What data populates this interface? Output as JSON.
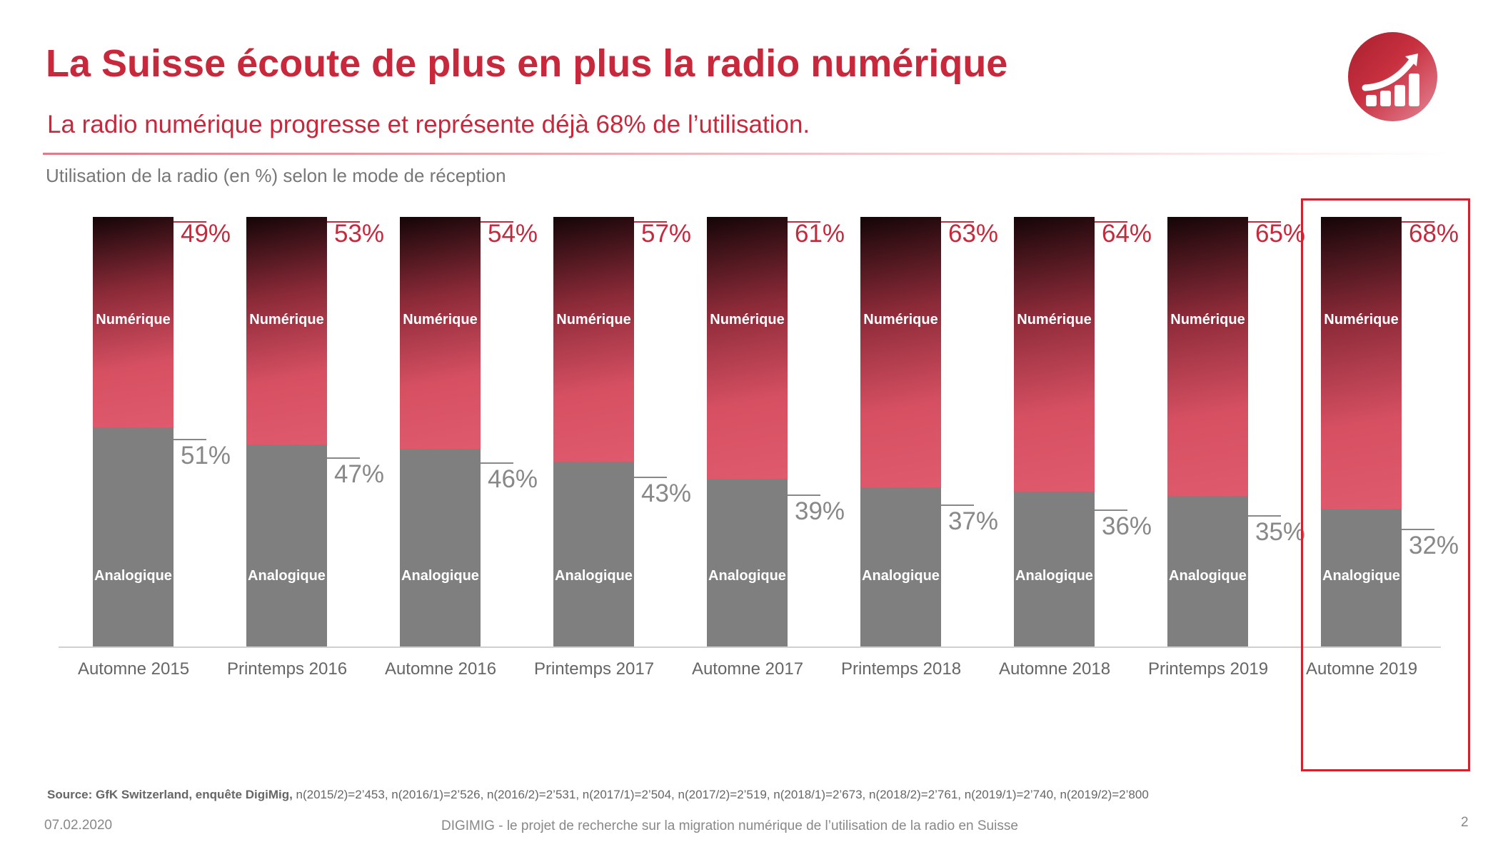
{
  "title": "La Suisse écoute de plus en plus la radio numérique",
  "subtitle": "La radio numérique progresse et représente déjà 68% de l’utilisation.",
  "colors": {
    "accent": "#c8283c",
    "analog": "#7f7f7f",
    "highlight": "#d0232f"
  },
  "logo_icon": "chart-growth-icon",
  "chart_data": {
    "type": "bar",
    "stacked": true,
    "title": "Utilisation de la radio (en %) selon le mode de réception",
    "categories": [
      "Automne 2015",
      "Printemps 2016",
      "Automne 2016",
      "Printemps 2017",
      "Automne 2017",
      "Printemps 2018",
      "Automne 2018",
      "Printemps 2019",
      "Automne 2019"
    ],
    "series": [
      {
        "name": "Numérique",
        "values": [
          49,
          53,
          54,
          57,
          61,
          63,
          64,
          65,
          68
        ],
        "labels": [
          "49%",
          "53%",
          "54%",
          "57%",
          "61%",
          "63%",
          "64%",
          "65%",
          "68%"
        ]
      },
      {
        "name": "Analogique",
        "values": [
          51,
          47,
          46,
          43,
          39,
          37,
          36,
          35,
          32
        ],
        "labels": [
          "51%",
          "47%",
          "46%",
          "43%",
          "39%",
          "37%",
          "36%",
          "35%",
          "32%"
        ]
      }
    ],
    "ylim": [
      0,
      100
    ],
    "highlighted_category": "Automne 2019"
  },
  "source": {
    "bold": "Source: GfK Switzerland, enquête DigiMig,",
    "text": " n(2015/2)=2’453, n(2016/1)=2’526, n(2016/2)=2’531, n(2017/1)=2’504, n(2017/2)=2’519, n(2018/1)=2’673, n(2018/2)=2’761, n(2019/1)=2’740, n(2019/2)=2’800"
  },
  "footer": {
    "date": "07.02.2020",
    "text": "DIGIMIG - le projet de recherche sur la migration numérique de l’utilisation de la radio en Suisse",
    "page": "2"
  }
}
